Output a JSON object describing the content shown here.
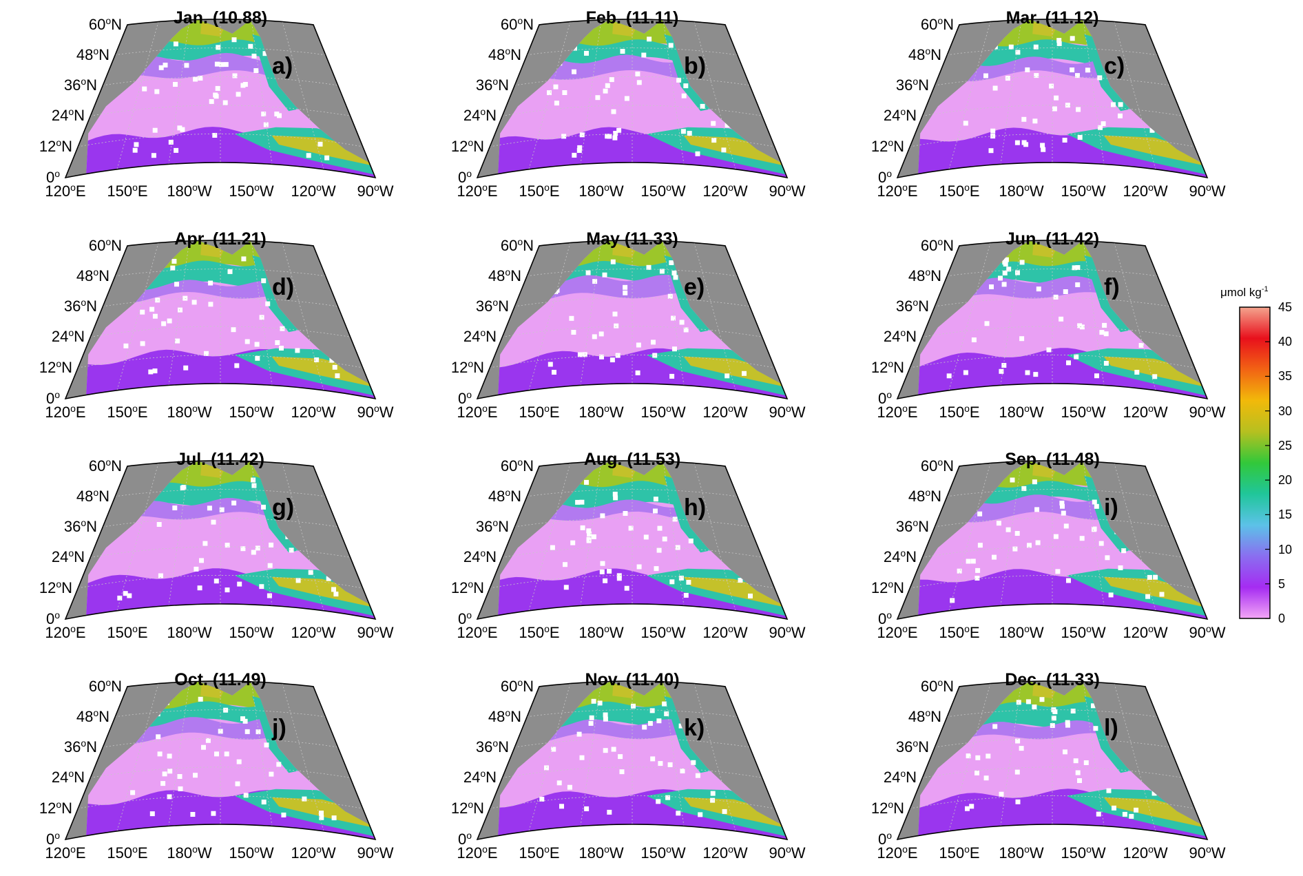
{
  "figure": {
    "panels": [
      {
        "title": "Jan. (10.88)",
        "tag": "a)"
      },
      {
        "title": "Feb. (11.11)",
        "tag": "b)"
      },
      {
        "title": "Mar. (11.12)",
        "tag": "c)"
      },
      {
        "title": "Apr. (11.21)",
        "tag": "d)"
      },
      {
        "title": "May (11.33)",
        "tag": "e)"
      },
      {
        "title": "Jun. (11.42)",
        "tag": "f)"
      },
      {
        "title": "Jul. (11.42)",
        "tag": "g)"
      },
      {
        "title": "Aug. (11.53)",
        "tag": "h)"
      },
      {
        "title": "Sep. (11.48)",
        "tag": "i)"
      },
      {
        "title": "Oct. (11.49)",
        "tag": "j)"
      },
      {
        "title": "Nov. (11.40)",
        "tag": "k)"
      },
      {
        "title": "Dec. (11.33)",
        "tag": "l)"
      }
    ],
    "lat_labels": [
      {
        "num": "60",
        "deg": "o",
        "hemi": "N"
      },
      {
        "num": "48",
        "deg": "o",
        "hemi": "N"
      },
      {
        "num": "36",
        "deg": "o",
        "hemi": "N"
      },
      {
        "num": "24",
        "deg": "o",
        "hemi": "N"
      },
      {
        "num": "12",
        "deg": "o",
        "hemi": "N"
      },
      {
        "num": "0",
        "deg": "o",
        "hemi": ""
      }
    ],
    "lon_labels": [
      {
        "num": "120",
        "deg": "o",
        "hemi": "E"
      },
      {
        "num": "150",
        "deg": "o",
        "hemi": "E"
      },
      {
        "num": "180",
        "deg": "o",
        "hemi": "W"
      },
      {
        "num": "150",
        "deg": "o",
        "hemi": "W"
      },
      {
        "num": "120",
        "deg": "o",
        "hemi": "W"
      },
      {
        "num": "90",
        "deg": "o",
        "hemi": "W"
      }
    ],
    "colorbar": {
      "unit_main": "μmol kg",
      "unit_sup": "-1",
      "ticks": [
        "45",
        "40",
        "35",
        "30",
        "25",
        "20",
        "15",
        "10",
        "5",
        "0"
      ],
      "min": 0,
      "max": 45,
      "colors": [
        "#f3a6f6",
        "#a52cf2",
        "#8a6ef0",
        "#5cc2e8",
        "#20c69a",
        "#32c83a",
        "#b6c020",
        "#f2b90a",
        "#f26314",
        "#e8101c",
        "#f4a48e"
      ]
    },
    "map_colors": {
      "land": "#8d8d8d",
      "gyre": "#e9a0f4",
      "tropical_band": "#9a36ee",
      "transition": "#b27af0",
      "subarctic": "#2ec3a8",
      "north": "#9cc62a",
      "eq_tongue": "#c4c12a",
      "data_gap": "#ffffff"
    }
  }
}
